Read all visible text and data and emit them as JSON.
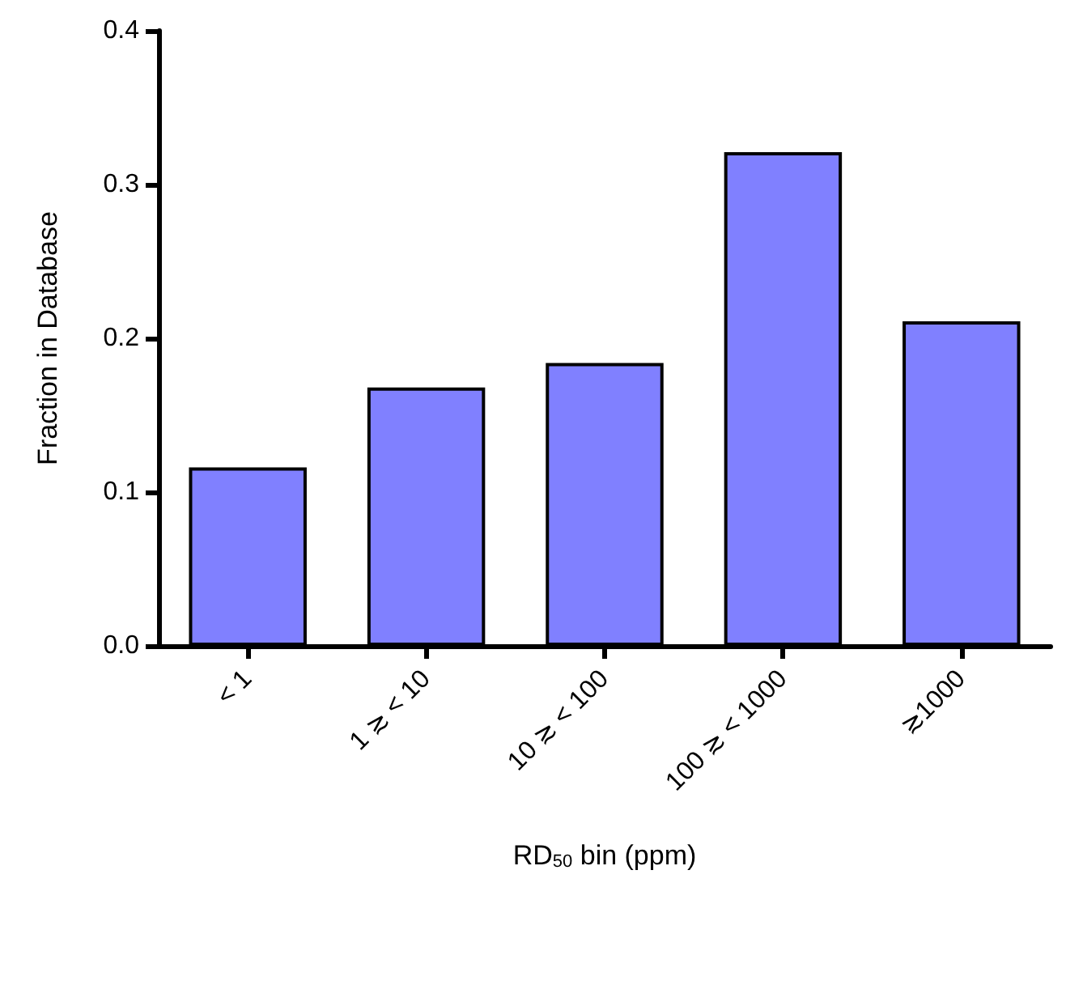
{
  "chart_data": {
    "type": "bar",
    "xlabel": "RD$_{50}$ bin (ppm)",
    "ylabel": "Fraction in Database",
    "categories": [
      "< 1",
      "1 ≳ < 10",
      "10 ≳ < 100",
      "100 ≳ < 1000",
      "≳1000"
    ],
    "values": [
      0.116,
      0.168,
      0.184,
      0.321,
      0.211
    ],
    "color": "#8080ff",
    "ylim": [
      0,
      0.4
    ],
    "yticks": [
      {
        "value": 0,
        "label": "0.0"
      },
      {
        "value": 0.1,
        "label": "0.1"
      },
      {
        "value": 0.2,
        "label": "0.2"
      },
      {
        "value": 0.3,
        "label": "0.3"
      },
      {
        "value": 0.4,
        "label": "0.4"
      }
    ],
    "grid": false
  }
}
